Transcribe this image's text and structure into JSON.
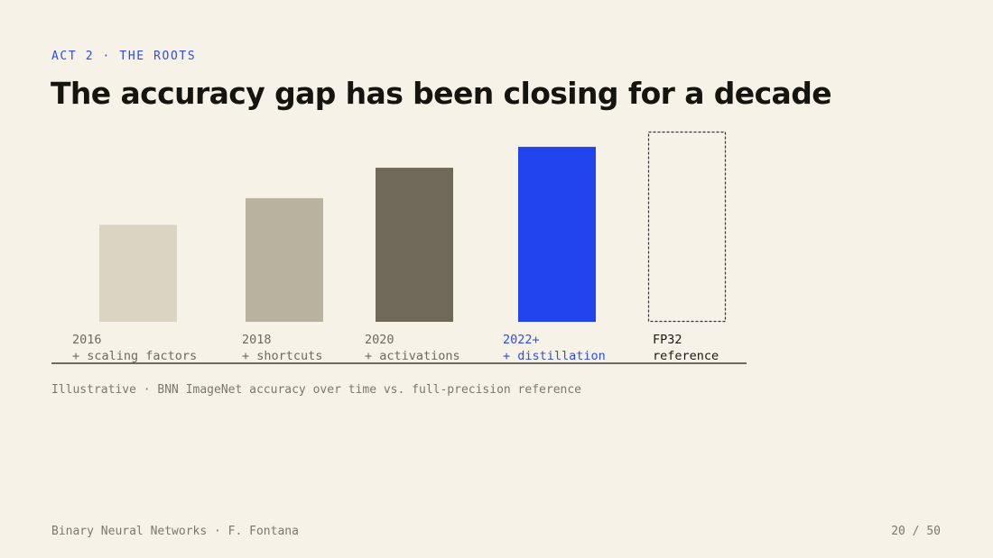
{
  "slide": {
    "kicker": "ACT 2 · THE ROOTS",
    "title": "The accuracy gap has been closing for a decade",
    "caption": "Illustrative · BNN ImageNet accuracy over time vs. full-precision reference",
    "footer_left": "Binary Neural Networks · F. Fontana",
    "footer_right": "20 / 50"
  },
  "chart_data": {
    "type": "bar",
    "title": "",
    "xlabel": "",
    "ylabel": "",
    "ylim": [
      0,
      100
    ],
    "grid": false,
    "legend": "none",
    "categories": [
      {
        "year": "2016",
        "label": "+ scaling factors"
      },
      {
        "year": "2018",
        "label": "+ shortcuts"
      },
      {
        "year": "2020",
        "label": "+ activations"
      },
      {
        "year": "2022+",
        "label": "+ distillation"
      },
      {
        "year": "FP32",
        "label": "reference"
      }
    ],
    "values": [
      51,
      65,
      81,
      92,
      100
    ],
    "colors": [
      "#dbd4c3",
      "#b9b29f",
      "#70695a",
      "#2244ee",
      "none"
    ],
    "label_colors": [
      "#6f695d",
      "#6f695d",
      "#6f695d",
      "#2f4de0",
      "#1a1812"
    ],
    "reference_style": "dashed-outline",
    "reference_stroke": "#333333"
  }
}
